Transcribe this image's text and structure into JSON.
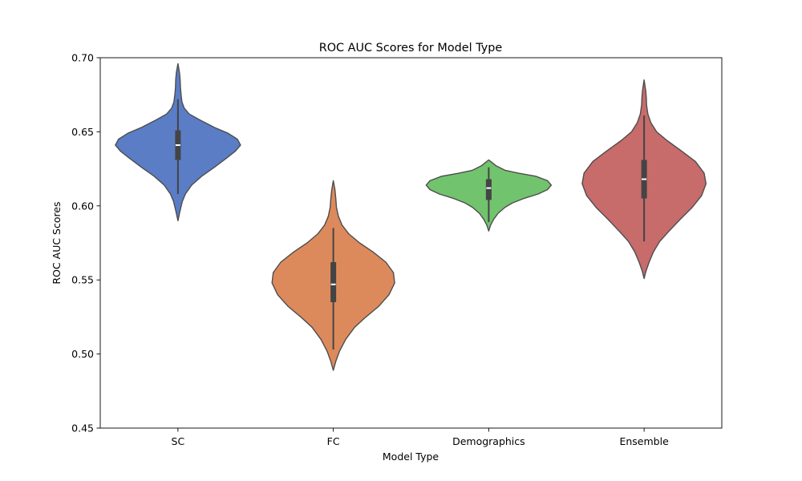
{
  "chart_data": {
    "type": "violin",
    "title": "ROC AUC Scores for Model Type",
    "xlabel": "Model Type",
    "ylabel": "ROC AUC Scores",
    "ylim": [
      0.45,
      0.7
    ],
    "yticks": [
      "0.45",
      "0.50",
      "0.55",
      "0.60",
      "0.65",
      "0.70"
    ],
    "grid": false,
    "categories": [
      "SC",
      "FC",
      "Demographics",
      "Ensemble"
    ],
    "series": [
      {
        "category": "SC",
        "color": "#5a7dc6",
        "min": 0.608,
        "q1": 0.631,
        "median": 0.641,
        "q3": 0.651,
        "max": 0.672,
        "density": [
          [
            0.59,
            0.0
          ],
          [
            0.596,
            0.03
          ],
          [
            0.603,
            0.07
          ],
          [
            0.608,
            0.12
          ],
          [
            0.614,
            0.22
          ],
          [
            0.62,
            0.38
          ],
          [
            0.626,
            0.58
          ],
          [
            0.632,
            0.77
          ],
          [
            0.637,
            0.92
          ],
          [
            0.641,
            1.0
          ],
          [
            0.645,
            0.95
          ],
          [
            0.649,
            0.8
          ],
          [
            0.653,
            0.58
          ],
          [
            0.658,
            0.35
          ],
          [
            0.662,
            0.18
          ],
          [
            0.666,
            0.1
          ],
          [
            0.67,
            0.065
          ],
          [
            0.675,
            0.05
          ],
          [
            0.68,
            0.04
          ],
          [
            0.685,
            0.035
          ],
          [
            0.69,
            0.025
          ],
          [
            0.696,
            0.0
          ]
        ]
      },
      {
        "category": "FC",
        "color": "#dc8a5c",
        "min": 0.503,
        "q1": 0.535,
        "median": 0.547,
        "q3": 0.562,
        "max": 0.585,
        "density": [
          [
            0.489,
            0.0
          ],
          [
            0.495,
            0.04
          ],
          [
            0.502,
            0.1
          ],
          [
            0.51,
            0.2
          ],
          [
            0.518,
            0.34
          ],
          [
            0.525,
            0.52
          ],
          [
            0.532,
            0.72
          ],
          [
            0.54,
            0.89
          ],
          [
            0.548,
            0.98
          ],
          [
            0.555,
            0.96
          ],
          [
            0.562,
            0.84
          ],
          [
            0.569,
            0.63
          ],
          [
            0.575,
            0.42
          ],
          [
            0.581,
            0.25
          ],
          [
            0.587,
            0.14
          ],
          [
            0.593,
            0.08
          ],
          [
            0.599,
            0.05
          ],
          [
            0.605,
            0.04
          ],
          [
            0.611,
            0.025
          ],
          [
            0.617,
            0.0
          ]
        ]
      },
      {
        "category": "Demographics",
        "color": "#72c36d",
        "min": 0.589,
        "q1": 0.604,
        "median": 0.612,
        "q3": 0.618,
        "max": 0.626,
        "density": [
          [
            0.583,
            0.0
          ],
          [
            0.587,
            0.03
          ],
          [
            0.591,
            0.08
          ],
          [
            0.595,
            0.15
          ],
          [
            0.599,
            0.26
          ],
          [
            0.602,
            0.38
          ],
          [
            0.605,
            0.56
          ],
          [
            0.608,
            0.79
          ],
          [
            0.611,
            0.94
          ],
          [
            0.614,
            1.0
          ],
          [
            0.617,
            0.94
          ],
          [
            0.62,
            0.75
          ],
          [
            0.622,
            0.48
          ],
          [
            0.624,
            0.26
          ],
          [
            0.627,
            0.12
          ],
          [
            0.629,
            0.06
          ],
          [
            0.631,
            0.0
          ]
        ]
      },
      {
        "category": "Ensemble",
        "color": "#c76b6b",
        "min": 0.576,
        "q1": 0.605,
        "median": 0.618,
        "q3": 0.631,
        "max": 0.661,
        "density": [
          [
            0.551,
            0.0
          ],
          [
            0.556,
            0.03
          ],
          [
            0.562,
            0.08
          ],
          [
            0.569,
            0.15
          ],
          [
            0.576,
            0.25
          ],
          [
            0.583,
            0.4
          ],
          [
            0.591,
            0.58
          ],
          [
            0.599,
            0.77
          ],
          [
            0.607,
            0.92
          ],
          [
            0.615,
            0.99
          ],
          [
            0.622,
            0.96
          ],
          [
            0.63,
            0.82
          ],
          [
            0.637,
            0.6
          ],
          [
            0.644,
            0.37
          ],
          [
            0.65,
            0.2
          ],
          [
            0.656,
            0.11
          ],
          [
            0.662,
            0.06
          ],
          [
            0.668,
            0.04
          ],
          [
            0.673,
            0.035
          ],
          [
            0.678,
            0.025
          ],
          [
            0.685,
            0.0
          ]
        ]
      }
    ]
  }
}
